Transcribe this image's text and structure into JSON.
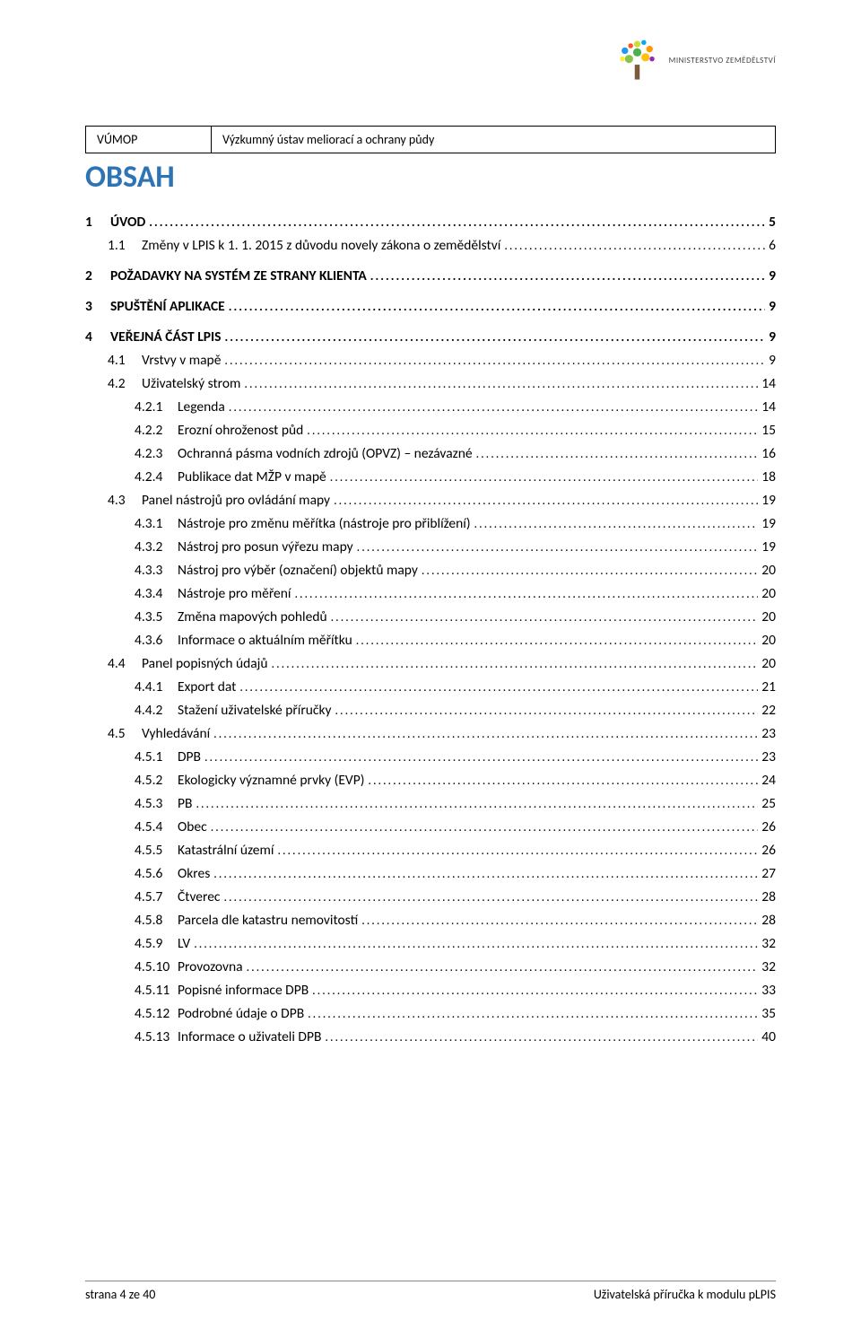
{
  "header": {
    "box_left": "VÚMOP",
    "box_right": "Výzkumný ústav meliorací a ochrany půdy",
    "logo_text": "MINISTERSTVO ZEMĚDĚLSTVÍ"
  },
  "title": "OBSAH",
  "toc": [
    {
      "level": 1,
      "num": "1",
      "title": "ÚVOD",
      "page": "5",
      "gap": false
    },
    {
      "level": 2,
      "num": "1.1",
      "title": "Změny v LPIS k 1. 1. 2015 z důvodu novely zákona o zemědělství",
      "page": "6",
      "gap": false
    },
    {
      "level": 1,
      "num": "2",
      "title": "POŽADAVKY NA SYSTÉM ZE STRANY KLIENTA",
      "page": "9",
      "gap": true
    },
    {
      "level": 1,
      "num": "3",
      "title": "SPUŠTĚNÍ APLIKACE",
      "page": "9",
      "gap": true
    },
    {
      "level": 1,
      "num": "4",
      "title": "VEŘEJNÁ ČÁST LPIS",
      "page": "9",
      "gap": true
    },
    {
      "level": 2,
      "num": "4.1",
      "title": "Vrstvy v mapě",
      "page": "9",
      "gap": false
    },
    {
      "level": 2,
      "num": "4.2",
      "title": "Uživatelský strom",
      "page": "14",
      "gap": false
    },
    {
      "level": 3,
      "num": "4.2.1",
      "title": "Legenda",
      "page": "14",
      "gap": false
    },
    {
      "level": 3,
      "num": "4.2.2",
      "title": "Erozní ohroženost půd",
      "page": "15",
      "gap": false
    },
    {
      "level": 3,
      "num": "4.2.3",
      "title": "Ochranná pásma vodních zdrojů (OPVZ) – nezávazné",
      "page": "16",
      "gap": false
    },
    {
      "level": 3,
      "num": "4.2.4",
      "title": "Publikace dat MŽP v mapě",
      "page": "18",
      "gap": false
    },
    {
      "level": 2,
      "num": "4.3",
      "title": "Panel nástrojů pro ovládání mapy",
      "page": "19",
      "gap": false
    },
    {
      "level": 3,
      "num": "4.3.1",
      "title": "Nástroje pro změnu měřítka (nástroje pro přiblížení)",
      "page": "19",
      "gap": false
    },
    {
      "level": 3,
      "num": "4.3.2",
      "title": "Nástroj pro posun výřezu mapy",
      "page": "19",
      "gap": false
    },
    {
      "level": 3,
      "num": "4.3.3",
      "title": "Nástroj pro výběr (označení) objektů mapy",
      "page": "20",
      "gap": false
    },
    {
      "level": 3,
      "num": "4.3.4",
      "title": "Nástroje pro měření",
      "page": "20",
      "gap": false
    },
    {
      "level": 3,
      "num": "4.3.5",
      "title": "Změna mapových pohledů",
      "page": "20",
      "gap": false
    },
    {
      "level": 3,
      "num": "4.3.6",
      "title": "Informace o aktuálním měřítku",
      "page": "20",
      "gap": false
    },
    {
      "level": 2,
      "num": "4.4",
      "title": "Panel popisných údajů",
      "page": "20",
      "gap": false
    },
    {
      "level": 3,
      "num": "4.4.1",
      "title": "Export dat",
      "page": "21",
      "gap": false
    },
    {
      "level": 3,
      "num": "4.4.2",
      "title": "Stažení uživatelské příručky",
      "page": "22",
      "gap": false
    },
    {
      "level": 2,
      "num": "4.5",
      "title": "Vyhledávání",
      "page": "23",
      "gap": false
    },
    {
      "level": 3,
      "num": "4.5.1",
      "title": "DPB",
      "page": "23",
      "gap": false
    },
    {
      "level": 3,
      "num": "4.5.2",
      "title": "Ekologicky významné prvky (EVP)",
      "page": "24",
      "gap": false
    },
    {
      "level": 3,
      "num": "4.5.3",
      "title": "PB",
      "page": "25",
      "gap": false
    },
    {
      "level": 3,
      "num": "4.5.4",
      "title": "Obec",
      "page": "26",
      "gap": false
    },
    {
      "level": 3,
      "num": "4.5.5",
      "title": "Katastrální území",
      "page": "26",
      "gap": false
    },
    {
      "level": 3,
      "num": "4.5.6",
      "title": "Okres",
      "page": "27",
      "gap": false
    },
    {
      "level": 3,
      "num": "4.5.7",
      "title": "Čtverec",
      "page": "28",
      "gap": false
    },
    {
      "level": 3,
      "num": "4.5.8",
      "title": "Parcela dle katastru nemovitostí",
      "page": "28",
      "gap": false
    },
    {
      "level": 3,
      "num": "4.5.9",
      "title": "LV",
      "page": "32",
      "gap": false
    },
    {
      "level": 3,
      "num": "4.5.10",
      "title": "Provozovna",
      "page": "32",
      "gap": false
    },
    {
      "level": 3,
      "num": "4.5.11",
      "title": "Popisné informace DPB",
      "page": "33",
      "gap": false
    },
    {
      "level": 3,
      "num": "4.5.12",
      "title": "Podrobné údaje o DPB",
      "page": "35",
      "gap": false
    },
    {
      "level": 3,
      "num": "4.5.13",
      "title": "Informace o uživateli DPB",
      "page": "40",
      "gap": false
    }
  ],
  "footer": {
    "left": "strana 4 ze 40",
    "right": "Uživatelská příručka k modulu pLPIS"
  },
  "colors": {
    "heading": "#2e74b5",
    "text": "#000000",
    "border": "#000000",
    "footer_border": "#888888"
  }
}
